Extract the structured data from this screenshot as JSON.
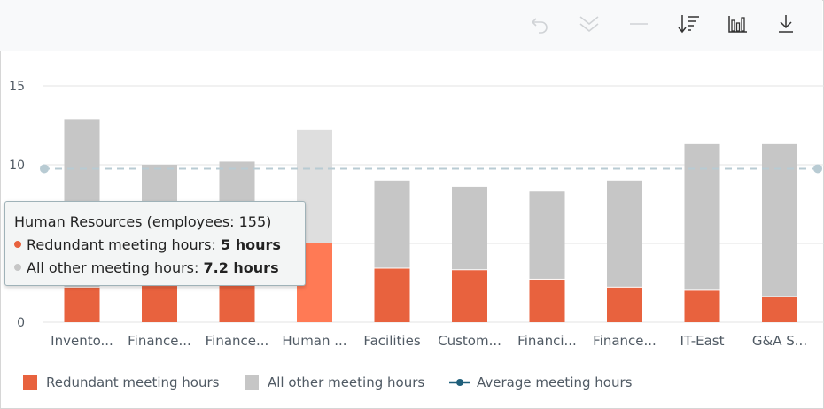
{
  "toolbar": {
    "icons": [
      "undo-icon",
      "expand-all-icon",
      "collapse-icon",
      "sort-icon",
      "bar-chart-icon",
      "download-icon"
    ]
  },
  "colors": {
    "redundant": "#e8623e",
    "redundant_highlight": "#ff7a55",
    "other": "#c6c6c6",
    "other_highlight": "#dedede",
    "average": "#1f5f7a",
    "average_line": "#b8cbd3",
    "grid": "#e3e3e3",
    "axis_text": "#505a64"
  },
  "chart_data": {
    "type": "bar",
    "stacked": true,
    "categories": [
      "Invento...",
      "Finance...",
      "Finance...",
      "Human ...",
      "Facilities",
      "Custom...",
      "Financi...",
      "Finance...",
      "IT-East",
      "G&A S..."
    ],
    "series": [
      {
        "name": "Redundant meeting hours",
        "values": [
          2.2,
          2.3,
          2.4,
          5.0,
          3.4,
          3.3,
          2.7,
          2.2,
          2.0,
          1.6
        ]
      },
      {
        "name": "All other meeting hours",
        "values": [
          10.7,
          7.7,
          7.8,
          7.2,
          5.6,
          5.3,
          5.6,
          6.8,
          9.3,
          9.7
        ]
      }
    ],
    "average": {
      "name": "Average meeting hours",
      "value": 9.75
    },
    "ylim": [
      0,
      15
    ],
    "yticks": [
      0,
      5,
      10,
      15
    ],
    "ytick_labels": [
      "0",
      "",
      "10",
      "15"
    ],
    "highlight_index": 3,
    "grid": true,
    "legend_position": "bottom-left"
  },
  "tooltip": {
    "title": "Human Resources",
    "subtitle": "(employees: 155)",
    "row1_label": "Redundant meeting hours:",
    "row1_value": "5 hours",
    "row2_label": "All other meeting hours:",
    "row2_value": "7.2 hours"
  },
  "legend": {
    "redundant_label": "Redundant meeting hours",
    "other_label": "All other meeting hours",
    "average_label": "Average meeting hours"
  }
}
